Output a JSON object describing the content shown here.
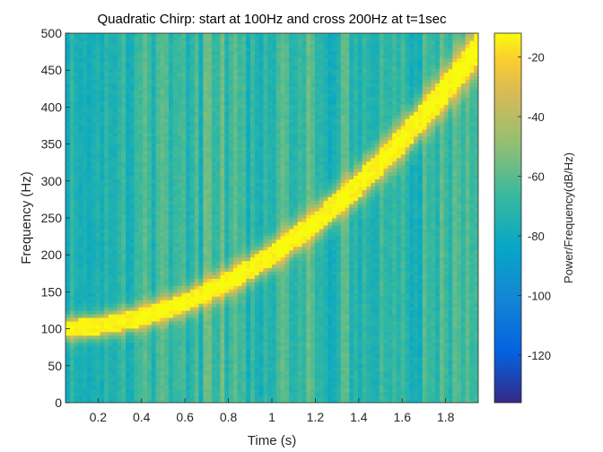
{
  "chart_data": {
    "type": "heatmap",
    "title": "Quadratic Chirp: start at 100Hz and cross 200Hz at t=1sec",
    "xlabel": "Time (s)",
    "ylabel": "Frequency (Hz)",
    "colorbar_label": "Power/Frequency(dB/Hz)",
    "xlim": [
      0.05,
      1.95
    ],
    "ylim": [
      0,
      500
    ],
    "clim": [
      -136,
      -12
    ],
    "x_ticks": [
      0.2,
      0.4,
      0.6,
      0.8,
      1,
      1.2,
      1.4,
      1.6,
      1.8
    ],
    "x_tick_labels": [
      "0.2",
      "0.4",
      "0.6",
      "0.8",
      "1",
      "1.2",
      "1.4",
      "1.6",
      "1.8"
    ],
    "y_ticks": [
      0,
      50,
      100,
      150,
      200,
      250,
      300,
      350,
      400,
      450,
      500
    ],
    "y_tick_labels": [
      "0",
      "50",
      "100",
      "150",
      "200",
      "250",
      "300",
      "350",
      "400",
      "450",
      "500"
    ],
    "colorbar_ticks": [
      -20,
      -40,
      -60,
      -80,
      -100,
      -120
    ],
    "colorbar_tick_labels": [
      "-20",
      "-40",
      "-60",
      "-80",
      "-100",
      "-120"
    ],
    "colormap": "parula",
    "chirp": {
      "t": [
        0.05,
        0.2,
        0.4,
        0.6,
        0.8,
        1.0,
        1.2,
        1.4,
        1.6,
        1.8,
        1.95
      ],
      "f": [
        100,
        104,
        116,
        136,
        164,
        200,
        244,
        296,
        356,
        424,
        480
      ]
    },
    "band_peak_db": -12,
    "background_db": -68
  }
}
